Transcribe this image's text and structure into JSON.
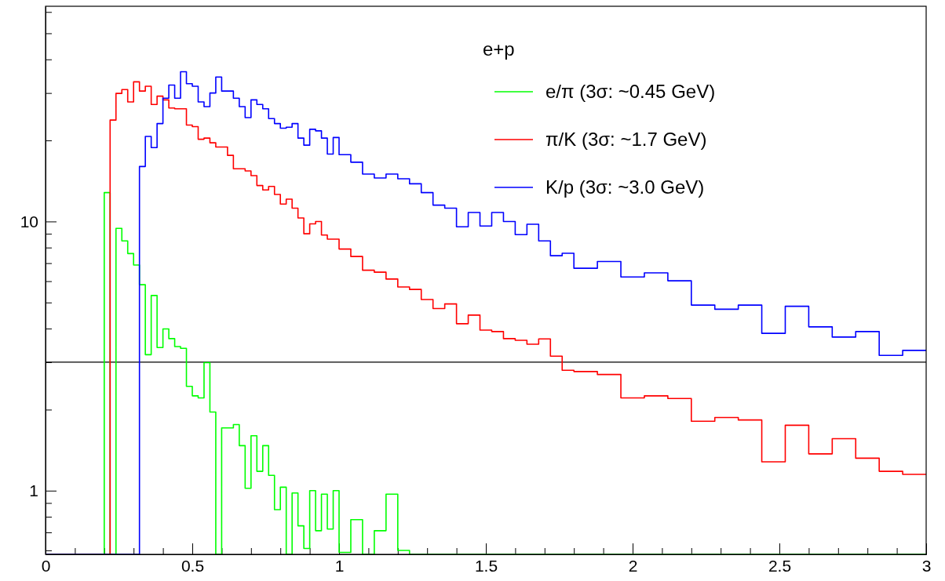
{
  "chart_data": {
    "type": "histogram",
    "legend_title": "e+p",
    "legend": "top right",
    "log": true,
    "bins": [
      0,
      0.02,
      0.04,
      0.06,
      0.08,
      0.1,
      0.12,
      0.14,
      0.16,
      0.18,
      0.2,
      0.22,
      0.24,
      0.26,
      0.28,
      0.3,
      0.32,
      0.34,
      0.36,
      0.38,
      0.4,
      0.42,
      0.44,
      0.46,
      0.48,
      0.5,
      0.52,
      0.54,
      0.56,
      0.58,
      0.6,
      0.62,
      0.64,
      0.66,
      0.68,
      0.7,
      0.72,
      0.74,
      0.76,
      0.78,
      0.8,
      0.82,
      0.84,
      0.86,
      0.88,
      0.9,
      0.92,
      0.94,
      0.96,
      0.98,
      1,
      1.02,
      1.04,
      1.08,
      1.12,
      1.16,
      1.2,
      1.24,
      1.28,
      1.32,
      1.36,
      1.4,
      1.44,
      1.48,
      1.52,
      1.56,
      1.6,
      1.64,
      1.68,
      1.72,
      1.76,
      1.8,
      1.88,
      1.96,
      2.04,
      2.12,
      2.2,
      2.28,
      2.36,
      2.44,
      2.52,
      2.6,
      2.68,
      2.76,
      2.84,
      2.92,
      3
    ],
    "series": [
      {
        "name": "e/π (3σ: ~0.45 GeV)",
        "color": "#00ff00",
        "values": [
          null,
          null,
          null,
          null,
          null,
          null,
          null,
          null,
          null,
          null,
          12.8,
          null,
          9.43,
          8.47,
          7.6,
          6.89,
          5.82,
          3.2,
          5.31,
          3.4,
          3.99,
          3.67,
          3.43,
          3.38,
          2.44,
          2.25,
          2.21,
          2.99,
          1.96,
          null,
          1.71,
          1.71,
          1.76,
          1.47,
          1.02,
          1.6,
          1.18,
          1.47,
          1.14,
          0.85,
          1.03,
          null,
          0.98,
          0.74,
          0.61,
          1.0,
          0.71,
          0.97,
          0.72,
          1.0,
          0.59,
          0.59,
          0.78,
          null,
          0.71,
          0.97,
          0.6,
          null,
          null,
          null,
          null,
          null,
          null,
          null,
          null,
          null,
          null,
          null,
          null,
          null,
          null,
          null,
          null,
          null,
          null,
          null,
          null,
          null,
          null,
          null,
          null,
          null,
          null,
          null,
          null,
          null
        ]
      },
      {
        "name": "π/K (3σ: ~1.7 GeV)",
        "color": "#ff0000",
        "values": [
          null,
          null,
          null,
          null,
          null,
          null,
          null,
          null,
          null,
          null,
          null,
          23.8,
          29.9,
          30.9,
          27.8,
          33.0,
          30.5,
          31.8,
          27.2,
          29.2,
          28.3,
          26.4,
          26.2,
          26.2,
          22.8,
          22.5,
          20.2,
          20.4,
          19.6,
          18.9,
          18.9,
          17.6,
          15.7,
          15.7,
          15.4,
          14.8,
          13.6,
          13.1,
          13.5,
          12.6,
          11.6,
          12.1,
          11.2,
          10.3,
          9.0,
          9.8,
          10.0,
          8.9,
          8.6,
          8.6,
          7.9,
          7.9,
          7.41,
          6.59,
          6.48,
          6.11,
          5.71,
          5.59,
          5.13,
          4.75,
          4.94,
          4.17,
          4.49,
          3.95,
          3.9,
          3.67,
          3.62,
          3.5,
          3.66,
          3.16,
          2.8,
          2.77,
          2.7,
          2.21,
          2.25,
          2.2,
          1.81,
          1.87,
          1.83,
          1.28,
          1.75,
          1.37,
          1.56,
          1.32,
          1.18,
          1.15
        ]
      },
      {
        "name": "K/p (3σ: ~3.0 GeV)",
        "color": "#0000ff",
        "values": [
          null,
          null,
          null,
          null,
          null,
          null,
          null,
          null,
          null,
          null,
          null,
          null,
          null,
          null,
          null,
          null,
          16.0,
          20.7,
          18.8,
          23.1,
          28.7,
          32.1,
          28.7,
          36.0,
          32.5,
          31.8,
          27.8,
          26.7,
          30.0,
          34.4,
          30.5,
          30.5,
          28.7,
          26.7,
          24.3,
          28.3,
          27.2,
          26.2,
          24.1,
          23.1,
          22.2,
          22.4,
          23.1,
          20.4,
          19.2,
          22.0,
          21.7,
          20.4,
          17.8,
          20.5,
          17.7,
          17.7,
          16.6,
          15.0,
          14.5,
          15.0,
          14.4,
          13.8,
          12.8,
          11.5,
          11.2,
          9.55,
          10.8,
          9.62,
          10.8,
          10.0,
          8.93,
          9.76,
          8.47,
          7.46,
          7.62,
          6.7,
          7.1,
          6.22,
          6.44,
          6.02,
          4.89,
          4.72,
          4.89,
          3.84,
          4.84,
          4.06,
          3.72,
          3.9,
          3.18,
          3.32
        ]
      }
    ],
    "xlim": [
      0,
      3
    ],
    "ylim": [
      0.58,
      63
    ],
    "xticks": [
      0,
      {
        "value": 0.1,
        "label": null
      },
      {
        "value": 0.2,
        "label": null
      },
      {
        "value": 0.3,
        "label": null
      },
      {
        "value": 0.4,
        "label": null
      },
      0.5,
      {
        "value": 0.6,
        "label": null
      },
      {
        "value": 0.7,
        "label": null
      },
      {
        "value": 0.8,
        "label": null
      },
      {
        "value": 0.9,
        "label": null
      },
      1,
      {
        "value": 1.1,
        "label": null
      },
      {
        "value": 1.2,
        "label": null
      },
      {
        "value": 1.3,
        "label": null
      },
      {
        "value": 1.4,
        "label": null
      },
      1.5,
      {
        "value": 1.6,
        "label": null
      },
      {
        "value": 1.7,
        "label": null
      },
      {
        "value": 1.8,
        "label": null
      },
      {
        "value": 1.9,
        "label": null
      },
      2,
      {
        "value": 2.1,
        "label": null
      },
      {
        "value": 2.2,
        "label": null
      },
      {
        "value": 2.3,
        "label": null
      },
      {
        "value": 2.4,
        "label": null
      },
      2.5,
      {
        "value": 2.6,
        "label": null
      },
      {
        "value": 2.7,
        "label": null
      },
      {
        "value": 2.8,
        "label": null
      },
      {
        "value": 2.9,
        "label": null
      },
      3
    ],
    "yticks": [
      {
        "value": 0.6,
        "label": null
      },
      {
        "value": 0.7,
        "label": null
      },
      {
        "value": 0.8,
        "label": null
      },
      {
        "value": 0.9,
        "label": null
      },
      1,
      {
        "value": 2,
        "label": null
      },
      {
        "value": 3,
        "label": null
      },
      {
        "value": 4,
        "label": null
      },
      {
        "value": 5,
        "label": null
      },
      {
        "value": 6,
        "label": null
      },
      {
        "value": 7,
        "label": null
      },
      {
        "value": 8,
        "label": null
      },
      {
        "value": 9,
        "label": null
      },
      10,
      {
        "value": 20,
        "label": null
      },
      {
        "value": 30,
        "label": null
      },
      {
        "value": 40,
        "label": null
      },
      {
        "value": 50,
        "label": null
      },
      {
        "value": 60,
        "label": null
      }
    ],
    "ref_lines": [
      {
        "axis": "y",
        "value": 3,
        "color": "#000000"
      }
    ]
  }
}
